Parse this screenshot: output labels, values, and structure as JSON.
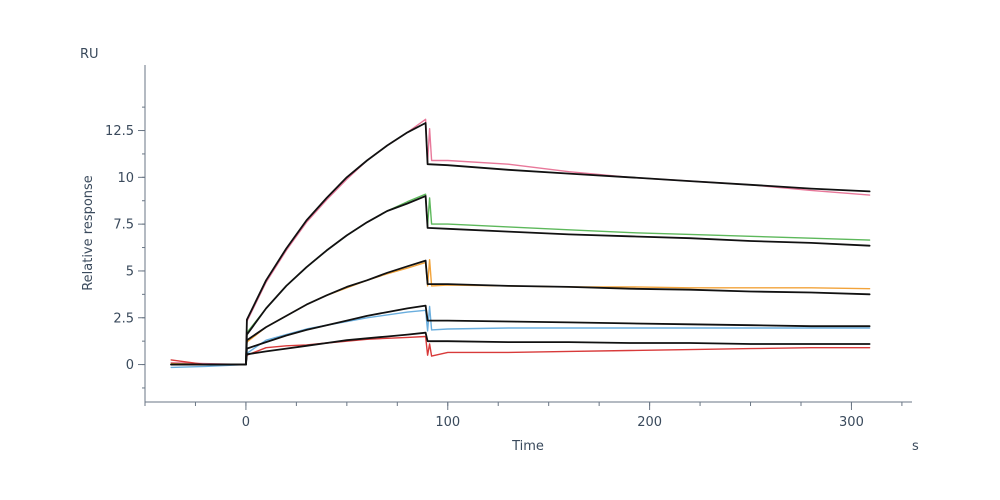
{
  "chart_data": {
    "type": "line",
    "title": "",
    "xlabel": "Time",
    "ylabel": "Relative response",
    "x_unit": "s",
    "y_unit": "RU",
    "xlim": [
      -50,
      330
    ],
    "ylim": [
      -2,
      16
    ],
    "x_ticks": [
      "0",
      "100",
      "200",
      "300"
    ],
    "y_ticks": [
      "0",
      "2.5",
      "5",
      "7.5",
      "10",
      "12.5"
    ],
    "grid": false,
    "series": [
      {
        "color": "#e8789a",
        "points": [
          [
            -37,
            0.1
          ],
          [
            -20,
            0.05
          ],
          [
            0,
            0
          ],
          [
            0.5,
            2.3
          ],
          [
            10,
            4.4
          ],
          [
            20,
            6.1
          ],
          [
            30,
            7.6
          ],
          [
            40,
            8.8
          ],
          [
            50,
            9.9
          ],
          [
            60,
            10.9
          ],
          [
            70,
            11.7
          ],
          [
            80,
            12.4
          ],
          [
            89,
            13.1
          ],
          [
            90,
            10.8
          ],
          [
            91,
            12.6
          ],
          [
            92,
            10.9
          ],
          [
            100,
            10.9
          ],
          [
            130,
            10.7
          ],
          [
            160,
            10.3
          ],
          [
            190,
            10.0
          ],
          [
            220,
            9.8
          ],
          [
            250,
            9.6
          ],
          [
            280,
            9.3
          ],
          [
            309,
            9.05
          ]
        ]
      },
      {
        "color": "#5db85b",
        "points": [
          [
            -37,
            0.05
          ],
          [
            -20,
            0
          ],
          [
            0,
            0
          ],
          [
            0.5,
            1.7
          ],
          [
            10,
            3.0
          ],
          [
            20,
            4.2
          ],
          [
            30,
            5.2
          ],
          [
            40,
            6.1
          ],
          [
            50,
            6.9
          ],
          [
            60,
            7.6
          ],
          [
            70,
            8.2
          ],
          [
            80,
            8.7
          ],
          [
            89,
            9.1
          ],
          [
            90,
            7.4
          ],
          [
            91,
            8.9
          ],
          [
            92,
            7.5
          ],
          [
            100,
            7.5
          ],
          [
            130,
            7.35
          ],
          [
            160,
            7.2
          ],
          [
            190,
            7.05
          ],
          [
            220,
            6.95
          ],
          [
            250,
            6.85
          ],
          [
            280,
            6.75
          ],
          [
            309,
            6.65
          ]
        ]
      },
      {
        "color": "#f2a33a",
        "points": [
          [
            -37,
            0.05
          ],
          [
            -20,
            0
          ],
          [
            0,
            0
          ],
          [
            0.5,
            1.2
          ],
          [
            10,
            2.0
          ],
          [
            20,
            2.6
          ],
          [
            30,
            3.2
          ],
          [
            40,
            3.7
          ],
          [
            50,
            4.1
          ],
          [
            60,
            4.5
          ],
          [
            70,
            4.85
          ],
          [
            80,
            5.15
          ],
          [
            89,
            5.45
          ],
          [
            90,
            4.2
          ],
          [
            91,
            5.6
          ],
          [
            92,
            4.2
          ],
          [
            100,
            4.25
          ],
          [
            130,
            4.2
          ],
          [
            160,
            4.15
          ],
          [
            190,
            4.15
          ],
          [
            220,
            4.1
          ],
          [
            250,
            4.1
          ],
          [
            280,
            4.1
          ],
          [
            309,
            4.05
          ]
        ]
      },
      {
        "color": "#6aaede",
        "points": [
          [
            -37,
            -0.15
          ],
          [
            -20,
            -0.1
          ],
          [
            0,
            0
          ],
          [
            0.5,
            0.6
          ],
          [
            10,
            1.3
          ],
          [
            20,
            1.6
          ],
          [
            30,
            1.9
          ],
          [
            40,
            2.1
          ],
          [
            50,
            2.3
          ],
          [
            60,
            2.5
          ],
          [
            70,
            2.65
          ],
          [
            80,
            2.8
          ],
          [
            89,
            2.9
          ],
          [
            90,
            1.8
          ],
          [
            91,
            3.1
          ],
          [
            92,
            1.85
          ],
          [
            100,
            1.9
          ],
          [
            130,
            1.95
          ],
          [
            160,
            1.95
          ],
          [
            190,
            1.95
          ],
          [
            220,
            1.95
          ],
          [
            250,
            1.95
          ],
          [
            280,
            1.95
          ],
          [
            309,
            1.95
          ]
        ]
      },
      {
        "color": "#d83a3a",
        "points": [
          [
            -37,
            0.25
          ],
          [
            -20,
            0
          ],
          [
            0,
            0
          ],
          [
            0.5,
            0.5
          ],
          [
            10,
            0.9
          ],
          [
            20,
            1.0
          ],
          [
            30,
            1.05
          ],
          [
            40,
            1.15
          ],
          [
            50,
            1.25
          ],
          [
            60,
            1.35
          ],
          [
            70,
            1.4
          ],
          [
            80,
            1.45
          ],
          [
            89,
            1.5
          ],
          [
            90,
            0.5
          ],
          [
            91,
            1.1
          ],
          [
            92,
            0.45
          ],
          [
            100,
            0.65
          ],
          [
            130,
            0.65
          ],
          [
            160,
            0.7
          ],
          [
            190,
            0.75
          ],
          [
            220,
            0.8
          ],
          [
            250,
            0.85
          ],
          [
            280,
            0.9
          ],
          [
            309,
            0.9
          ]
        ]
      },
      {
        "color": "#111111",
        "points": [
          [
            -37,
            0
          ],
          [
            0,
            0
          ],
          [
            0.5,
            2.4
          ],
          [
            10,
            4.5
          ],
          [
            20,
            6.2
          ],
          [
            30,
            7.7
          ],
          [
            40,
            8.9
          ],
          [
            50,
            10.0
          ],
          [
            60,
            10.9
          ],
          [
            70,
            11.7
          ],
          [
            80,
            12.4
          ],
          [
            89,
            12.9
          ],
          [
            90,
            10.7
          ],
          [
            100,
            10.65
          ],
          [
            130,
            10.4
          ],
          [
            160,
            10.2
          ],
          [
            190,
            10.0
          ],
          [
            220,
            9.8
          ],
          [
            250,
            9.6
          ],
          [
            280,
            9.4
          ],
          [
            309,
            9.25
          ]
        ]
      },
      {
        "color": "#111111",
        "points": [
          [
            -37,
            0
          ],
          [
            0,
            0
          ],
          [
            0.5,
            1.6
          ],
          [
            10,
            3.0
          ],
          [
            20,
            4.2
          ],
          [
            30,
            5.2
          ],
          [
            40,
            6.1
          ],
          [
            50,
            6.9
          ],
          [
            60,
            7.6
          ],
          [
            70,
            8.2
          ],
          [
            80,
            8.6
          ],
          [
            89,
            9.0
          ],
          [
            90,
            7.3
          ],
          [
            100,
            7.25
          ],
          [
            130,
            7.1
          ],
          [
            160,
            6.95
          ],
          [
            190,
            6.85
          ],
          [
            220,
            6.75
          ],
          [
            250,
            6.6
          ],
          [
            280,
            6.5
          ],
          [
            309,
            6.35
          ]
        ]
      },
      {
        "color": "#111111",
        "points": [
          [
            -37,
            0
          ],
          [
            0,
            0
          ],
          [
            0.5,
            1.3
          ],
          [
            10,
            2.0
          ],
          [
            20,
            2.6
          ],
          [
            30,
            3.2
          ],
          [
            40,
            3.7
          ],
          [
            50,
            4.15
          ],
          [
            60,
            4.5
          ],
          [
            70,
            4.9
          ],
          [
            80,
            5.25
          ],
          [
            89,
            5.55
          ],
          [
            90,
            4.3
          ],
          [
            100,
            4.3
          ],
          [
            130,
            4.2
          ],
          [
            160,
            4.15
          ],
          [
            190,
            4.05
          ],
          [
            220,
            4.0
          ],
          [
            250,
            3.9
          ],
          [
            280,
            3.85
          ],
          [
            309,
            3.75
          ]
        ]
      },
      {
        "color": "#111111",
        "points": [
          [
            -37,
            0
          ],
          [
            0,
            0
          ],
          [
            0.5,
            0.85
          ],
          [
            10,
            1.2
          ],
          [
            20,
            1.55
          ],
          [
            30,
            1.85
          ],
          [
            40,
            2.1
          ],
          [
            50,
            2.35
          ],
          [
            60,
            2.6
          ],
          [
            70,
            2.8
          ],
          [
            80,
            3.0
          ],
          [
            89,
            3.15
          ],
          [
            90,
            2.35
          ],
          [
            100,
            2.35
          ],
          [
            130,
            2.3
          ],
          [
            160,
            2.25
          ],
          [
            190,
            2.2
          ],
          [
            220,
            2.15
          ],
          [
            250,
            2.1
          ],
          [
            280,
            2.05
          ],
          [
            309,
            2.05
          ]
        ]
      },
      {
        "color": "#111111",
        "points": [
          [
            -37,
            0
          ],
          [
            0,
            0
          ],
          [
            0.5,
            0.55
          ],
          [
            10,
            0.7
          ],
          [
            20,
            0.85
          ],
          [
            30,
            1.0
          ],
          [
            40,
            1.15
          ],
          [
            50,
            1.3
          ],
          [
            60,
            1.4
          ],
          [
            70,
            1.5
          ],
          [
            80,
            1.6
          ],
          [
            89,
            1.7
          ],
          [
            90,
            1.25
          ],
          [
            100,
            1.25
          ],
          [
            130,
            1.2
          ],
          [
            160,
            1.2
          ],
          [
            190,
            1.15
          ],
          [
            220,
            1.15
          ],
          [
            250,
            1.1
          ],
          [
            280,
            1.1
          ],
          [
            309,
            1.1
          ]
        ]
      }
    ]
  }
}
